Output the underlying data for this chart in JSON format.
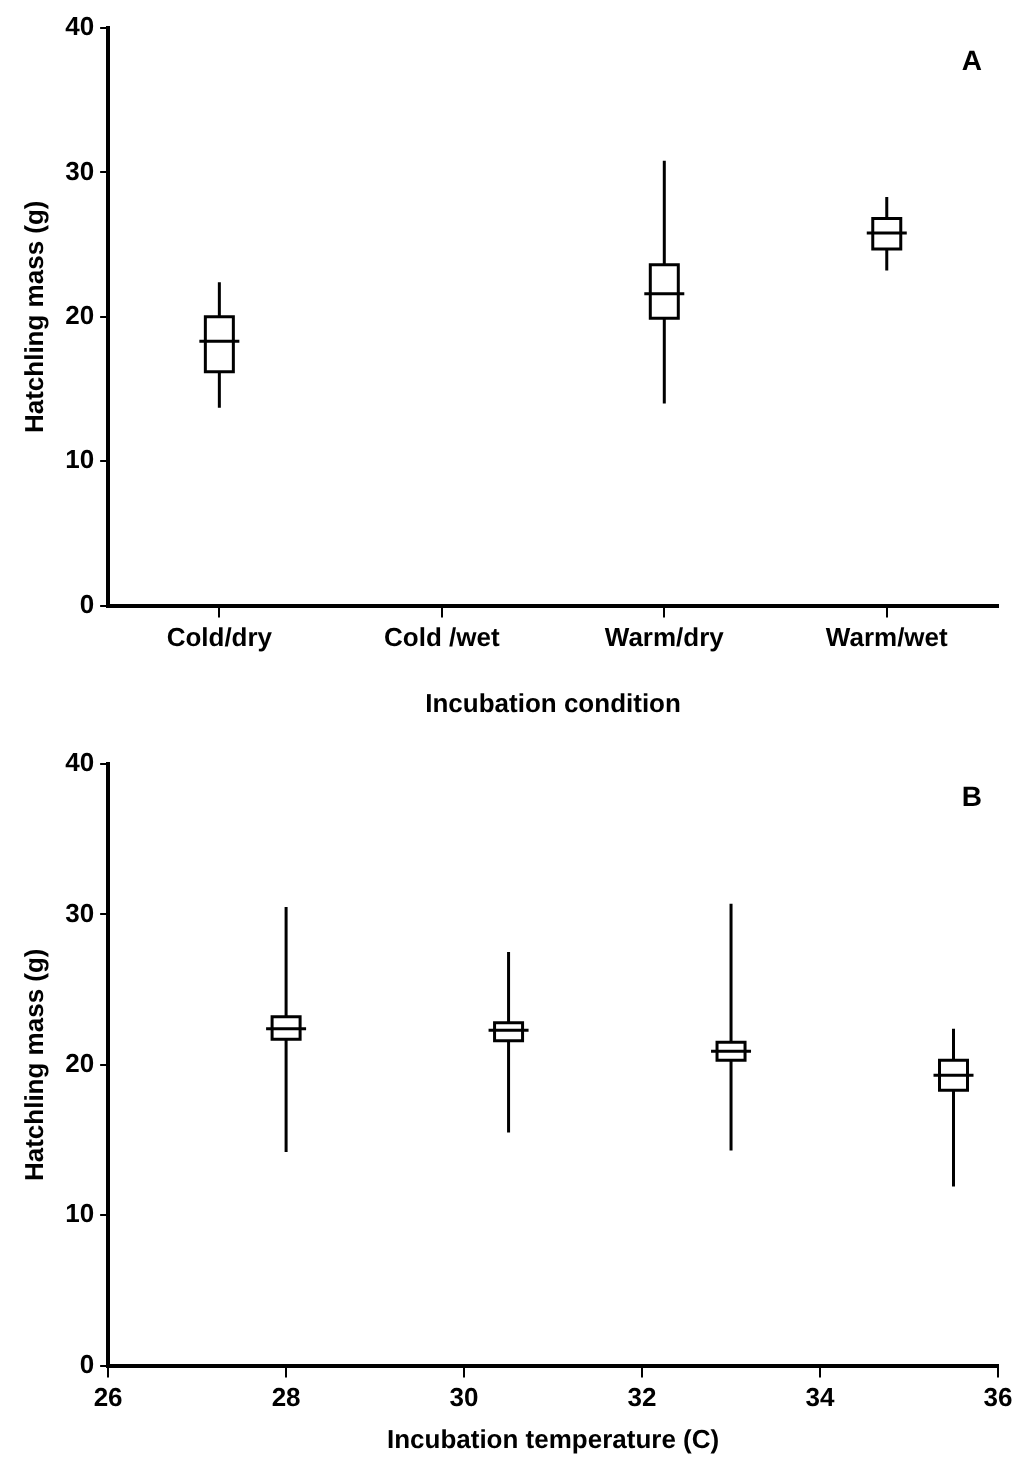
{
  "chart_data": [
    {
      "type": "box",
      "annotations": [
        "A"
      ],
      "xlabel": "Incubation condition",
      "ylabel": "Hatchling mass (g)",
      "color": "#000000",
      "categories": [
        "Cold/dry",
        "Cold /wet",
        "Warm/dry",
        "Warm/wet"
      ],
      "boxes": [
        {
          "low": 13.7,
          "q1": 16.2,
          "median": 18.3,
          "q3": 20.0,
          "high": 22.4
        },
        null,
        {
          "low": 14.0,
          "q1": 19.9,
          "median": 21.6,
          "q3": 23.6,
          "high": 30.8
        },
        {
          "low": 23.2,
          "q1": 24.7,
          "median": 25.8,
          "q3": 26.8,
          "high": 28.3
        }
      ],
      "ylim": [
        0,
        40
      ],
      "yticks": [
        0,
        10,
        20,
        30,
        40
      ],
      "grid": false,
      "legend": false
    },
    {
      "type": "box",
      "annotations": [
        "B"
      ],
      "xlabel": "Incubation temperature (C)",
      "ylabel": "Hatchling mass (g)",
      "color": "#000000",
      "x": [
        28,
        30.5,
        33,
        35.5
      ],
      "boxes": [
        {
          "low": 14.2,
          "q1": 21.7,
          "median": 22.4,
          "q3": 23.2,
          "high": 30.5
        },
        {
          "low": 15.5,
          "q1": 21.6,
          "median": 22.3,
          "q3": 22.8,
          "high": 27.5
        },
        {
          "low": 14.3,
          "q1": 20.3,
          "median": 20.9,
          "q3": 21.5,
          "high": 30.7
        },
        {
          "low": 11.9,
          "q1": 18.3,
          "median": 19.3,
          "q3": 20.3,
          "high": 22.4
        }
      ],
      "xlim": [
        26,
        36
      ],
      "xticks": [
        26,
        28,
        30,
        32,
        34,
        36
      ],
      "ylim": [
        0,
        40
      ],
      "yticks": [
        0,
        10,
        20,
        30,
        40
      ],
      "grid": false,
      "legend": false
    }
  ]
}
